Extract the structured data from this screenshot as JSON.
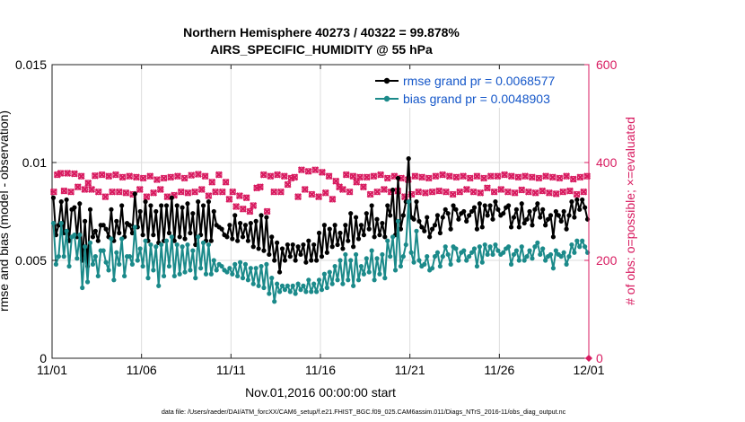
{
  "chart_data": {
    "type": "line",
    "title_line1": "Northern Hemisphere 40273 / 40322 = 99.878%",
    "title_line2": "AIRS_SPECIFIC_HUMIDITY @ 55 hPa",
    "xlabel": "Nov.01,2016 00:00:00 start",
    "ylabel_left": "rmse and bias (model - observation)",
    "ylabel_right": "# of obs: o=possible; ×=evaluated",
    "footnote": "data file: /Users/raeder/DAI/ATM_forcXX/CAM6_setup/f.e21.FHIST_BGC.f09_025.CAM6assim.011/Diags_NTrS_2016-11/obs_diag_output.nc",
    "x_ticks": [
      "11/01",
      "11/06",
      "11/11",
      "11/16",
      "11/21",
      "11/26",
      "12/01"
    ],
    "y_left_ticks": [
      "0",
      "0.005",
      "0.01",
      "0.015"
    ],
    "y_right_ticks": [
      "0",
      "200",
      "400",
      "600"
    ],
    "xlim": [
      0,
      30
    ],
    "ylim_left": [
      0,
      0.015
    ],
    "ylim_right": [
      0,
      600
    ],
    "series": [
      {
        "name": "rmse",
        "legend": "rmse grand pr = 0.0068577",
        "color": "#000000",
        "values": [
          0.0082,
          0.0063,
          0.0068,
          0.008,
          0.0064,
          0.0081,
          0.006,
          0.0076,
          0.0077,
          0.0062,
          0.0079,
          0.005,
          0.007,
          0.0047,
          0.0076,
          0.0062,
          0.0065,
          0.006,
          0.0068,
          0.0068,
          0.0066,
          0.0062,
          0.0076,
          0.006,
          0.007,
          0.0064,
          0.0078,
          0.0062,
          0.0069,
          0.0068,
          0.0064,
          0.0084,
          0.0067,
          0.0075,
          0.0063,
          0.008,
          0.006,
          0.0078,
          0.0063,
          0.0075,
          0.0059,
          0.0078,
          0.006,
          0.0078,
          0.0064,
          0.0082,
          0.006,
          0.0078,
          0.0062,
          0.0077,
          0.0061,
          0.0079,
          0.0064,
          0.0074,
          0.0058,
          0.008,
          0.0063,
          0.0078,
          0.006,
          0.008,
          0.006,
          0.0075,
          0.0068,
          0.0067,
          0.0066,
          0.0063,
          0.0062,
          0.0068,
          0.0061,
          0.0073,
          0.006,
          0.0069,
          0.0062,
          0.0068,
          0.006,
          0.0069,
          0.0057,
          0.007,
          0.0056,
          0.0073,
          0.0055,
          0.0072,
          0.0053,
          0.0062,
          0.005,
          0.0059,
          0.0044,
          0.0056,
          0.005,
          0.0058,
          0.0052,
          0.0058,
          0.005,
          0.0057,
          0.0053,
          0.0058,
          0.0049,
          0.006,
          0.005,
          0.0058,
          0.005,
          0.0064,
          0.0052,
          0.0068,
          0.0054,
          0.0066,
          0.0057,
          0.0068,
          0.0058,
          0.0064,
          0.0056,
          0.0068,
          0.006,
          0.0074,
          0.0057,
          0.0072,
          0.0061,
          0.0068,
          0.0063,
          0.0074,
          0.0066,
          0.0078,
          0.0062,
          0.0071,
          0.0063,
          0.0069,
          0.0062,
          0.0078,
          0.0073,
          0.0086,
          0.0063,
          0.0092,
          0.0066,
          0.0073,
          0.008,
          0.0102,
          0.0072,
          0.0071,
          0.008,
          0.007,
          0.0067,
          0.0065,
          0.0072,
          0.0062,
          0.0066,
          0.0068,
          0.0073,
          0.0064,
          0.0072,
          0.0076,
          0.0074,
          0.0066,
          0.0078,
          0.0076,
          0.0071,
          0.0074,
          0.0075,
          0.007,
          0.0073,
          0.0075,
          0.0077,
          0.0066,
          0.0079,
          0.0067,
          0.0078,
          0.0073,
          0.0078,
          0.0071,
          0.008,
          0.0076,
          0.0073,
          0.0074,
          0.0077,
          0.0078,
          0.0067,
          0.0072,
          0.0076,
          0.0067,
          0.0079,
          0.0069,
          0.0071,
          0.0075,
          0.0068,
          0.0076,
          0.0079,
          0.0072,
          0.0076,
          0.0068,
          0.0071,
          0.0073,
          0.0062,
          0.0075,
          0.0073,
          0.007,
          0.0075,
          0.0066,
          0.0073,
          0.008,
          0.0072,
          0.0081,
          0.0076,
          0.0081,
          0.0077,
          0.0071
        ]
      },
      {
        "name": "bias",
        "legend": "bias grand pr = 0.0048903",
        "color": "#1b8a8a",
        "values": [
          0.0069,
          0.0048,
          0.0052,
          0.0069,
          0.0052,
          0.0065,
          0.0047,
          0.0062,
          0.0063,
          0.0051,
          0.0063,
          0.0036,
          0.0057,
          0.0039,
          0.0059,
          0.0048,
          0.0052,
          0.0042,
          0.0055,
          0.0055,
          0.0049,
          0.0045,
          0.0061,
          0.004,
          0.0054,
          0.0048,
          0.0061,
          0.0042,
          0.0052,
          0.0052,
          0.0048,
          0.0067,
          0.005,
          0.0056,
          0.0047,
          0.006,
          0.0041,
          0.0058,
          0.0045,
          0.0057,
          0.0037,
          0.0058,
          0.0042,
          0.006,
          0.0047,
          0.0062,
          0.0042,
          0.0058,
          0.0043,
          0.0057,
          0.0044,
          0.0058,
          0.0045,
          0.0055,
          0.0041,
          0.0062,
          0.0046,
          0.0059,
          0.0043,
          0.0058,
          0.0043,
          0.005,
          0.0045,
          0.0048,
          0.0047,
          0.0045,
          0.0044,
          0.0046,
          0.0043,
          0.0048,
          0.0042,
          0.0049,
          0.0041,
          0.0048,
          0.004,
          0.0046,
          0.0038,
          0.0046,
          0.0037,
          0.0047,
          0.0036,
          0.0048,
          0.0033,
          0.0041,
          0.0029,
          0.0038,
          0.0034,
          0.0037,
          0.0035,
          0.0037,
          0.0034,
          0.0037,
          0.0033,
          0.0038,
          0.0035,
          0.0037,
          0.0034,
          0.004,
          0.0034,
          0.0038,
          0.0034,
          0.004,
          0.0035,
          0.0043,
          0.0036,
          0.0044,
          0.0038,
          0.0047,
          0.004,
          0.005,
          0.0038,
          0.0053,
          0.004,
          0.005,
          0.0037,
          0.0053,
          0.004,
          0.0047,
          0.0043,
          0.0051,
          0.0044,
          0.0055,
          0.004,
          0.0051,
          0.0043,
          0.0053,
          0.0041,
          0.006,
          0.0052,
          0.0062,
          0.0045,
          0.007,
          0.0047,
          0.0052,
          0.0058,
          0.008,
          0.0054,
          0.0049,
          0.0065,
          0.005,
          0.0047,
          0.0048,
          0.0052,
          0.0045,
          0.0046,
          0.0052,
          0.0054,
          0.0047,
          0.0052,
          0.0057,
          0.0053,
          0.0048,
          0.0057,
          0.0056,
          0.005,
          0.0054,
          0.0055,
          0.005,
          0.0052,
          0.0054,
          0.0056,
          0.0047,
          0.0057,
          0.0049,
          0.0058,
          0.0053,
          0.0057,
          0.0053,
          0.0058,
          0.0055,
          0.0053,
          0.0054,
          0.0056,
          0.0057,
          0.0048,
          0.0053,
          0.0055,
          0.005,
          0.0057,
          0.005,
          0.0052,
          0.0055,
          0.0051,
          0.0057,
          0.0059,
          0.0053,
          0.0056,
          0.005,
          0.0052,
          0.0053,
          0.0046,
          0.0055,
          0.0053,
          0.0052,
          0.0054,
          0.0048,
          0.0052,
          0.0058,
          0.0054,
          0.006,
          0.0057,
          0.006,
          0.0057,
          0.0054
        ]
      }
    ],
    "obs_possible": [
      340,
      375,
      378,
      342,
      378,
      340,
      377,
      350,
      372,
      345,
      358,
      345,
      373,
      340,
      375,
      330,
      372,
      340,
      375,
      340,
      370,
      338,
      372,
      335,
      370,
      345,
      368,
      330,
      372,
      338,
      365,
      345,
      368,
      330,
      370,
      333,
      372,
      340,
      368,
      338,
      374,
      340,
      376,
      345,
      372,
      332,
      360,
      340,
      375,
      340,
      360,
      325,
      340,
      310,
      332,
      305,
      328,
      300,
      312,
      348,
      350,
      375,
      300,
      372,
      340,
      375,
      340,
      372,
      355,
      368,
      370,
      330,
      385,
      345,
      382,
      335,
      385,
      330,
      380,
      338,
      372,
      325,
      362,
      350,
      345,
      375,
      340,
      372,
      360,
      370,
      350,
      370,
      335,
      372,
      340,
      375,
      345,
      368,
      340,
      372,
      342,
      368,
      330,
      365,
      335,
      372,
      340,
      370,
      338,
      368,
      340,
      372,
      342,
      375,
      340,
      372,
      335,
      370,
      340,
      372,
      345,
      368,
      340,
      372,
      338,
      368,
      348,
      372,
      340,
      372,
      345,
      375,
      340,
      372,
      338,
      370,
      344,
      372,
      340,
      370,
      338,
      368,
      342,
      372,
      338,
      370,
      336,
      368,
      340,
      372,
      342,
      366,
      335,
      370,
      340,
      372
    ],
    "obs_evaluated": [
      340,
      375,
      378,
      342,
      378,
      340,
      377,
      350,
      372,
      345,
      358,
      345,
      373,
      340,
      375,
      330,
      372,
      340,
      375,
      340,
      370,
      338,
      372,
      335,
      370,
      345,
      368,
      330,
      372,
      338,
      365,
      345,
      368,
      330,
      370,
      333,
      372,
      340,
      368,
      338,
      374,
      340,
      376,
      345,
      372,
      332,
      360,
      340,
      375,
      340,
      360,
      325,
      340,
      310,
      332,
      305,
      328,
      300,
      312,
      348,
      350,
      375,
      300,
      372,
      340,
      375,
      340,
      372,
      355,
      368,
      370,
      330,
      385,
      345,
      382,
      335,
      385,
      330,
      380,
      338,
      372,
      325,
      362,
      350,
      345,
      375,
      340,
      372,
      360,
      370,
      350,
      370,
      335,
      372,
      340,
      375,
      345,
      368,
      340,
      372,
      342,
      368,
      330,
      365,
      335,
      372,
      340,
      370,
      338,
      368,
      340,
      372,
      342,
      375,
      340,
      372,
      335,
      370,
      340,
      372,
      345,
      368,
      340,
      372,
      338,
      368,
      348,
      372,
      340,
      372,
      345,
      375,
      340,
      372,
      338,
      370,
      344,
      372,
      340,
      370,
      338,
      368,
      342,
      372,
      338,
      370,
      336,
      368,
      340,
      372,
      342,
      366,
      335,
      370,
      340,
      372
    ],
    "obs_color": "#d81b60"
  }
}
